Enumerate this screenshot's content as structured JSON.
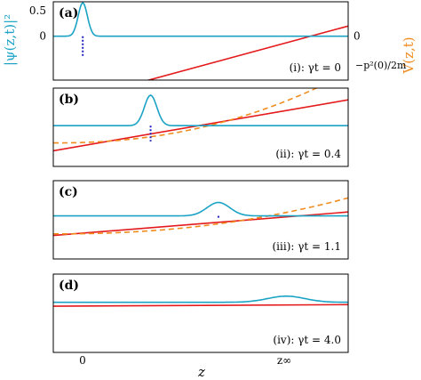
{
  "chart_data": {
    "type": "line",
    "y_left_label": "|ψ(z,t)|²",
    "y_right_label": "V(z,t)",
    "x_label": "z",
    "x_ticks": [
      "0",
      "z∞"
    ],
    "right_annotation": "−p²(0)/2m",
    "colors": {
      "wavepacket": "#1ba3c6",
      "potential": "#e41a1c",
      "dashed": "#f08c1e",
      "marker": "#1f1fbf",
      "axis": "#000000"
    },
    "panels": [
      {
        "label": "(a)",
        "state": "(i): γt = 0",
        "y_ticks": [
          "0.5",
          "0"
        ],
        "y_tick_values": [
          0.5,
          0
        ],
        "ylim": [
          -0.35,
          0.65
        ],
        "right_tick": "0",
        "packet": {
          "center": 0,
          "width": 0.22,
          "peak": 0.55
        },
        "line": {
          "y_start": -0.33,
          "y_end": 0.69
        },
        "dashed": null,
        "marker_height": 0.26
      },
      {
        "label": "(b)",
        "state": "(ii): γt = 0.4",
        "packet": {
          "center": 2.3,
          "width": 0.3,
          "peak": 0.5
        },
        "line": {
          "y_start": 0.2,
          "y_end": 0.85
        },
        "dashed": {
          "y_start": 0.3,
          "y_min": 0.3,
          "y_end": 1.2
        },
        "marker_height": 0.2
      },
      {
        "label": "(c)",
        "state": "(iii): γt = 1.1",
        "packet": {
          "center": 4.6,
          "width": 0.55,
          "peak": 0.22
        },
        "line": {
          "y_start": 0.3,
          "y_end": 0.6
        },
        "dashed": {
          "y_start": 0.32,
          "y_min": 0.32,
          "y_end": 0.78
        },
        "marker_height": 0.04
      },
      {
        "label": "(d)",
        "state": "(iv): γt = 4.0",
        "packet": {
          "center": 6.9,
          "width": 0.9,
          "peak": 0.1
        },
        "line": {
          "y_start": 0.59,
          "y_end": 0.61
        },
        "dashed": null,
        "marker_height": 0
      }
    ]
  }
}
